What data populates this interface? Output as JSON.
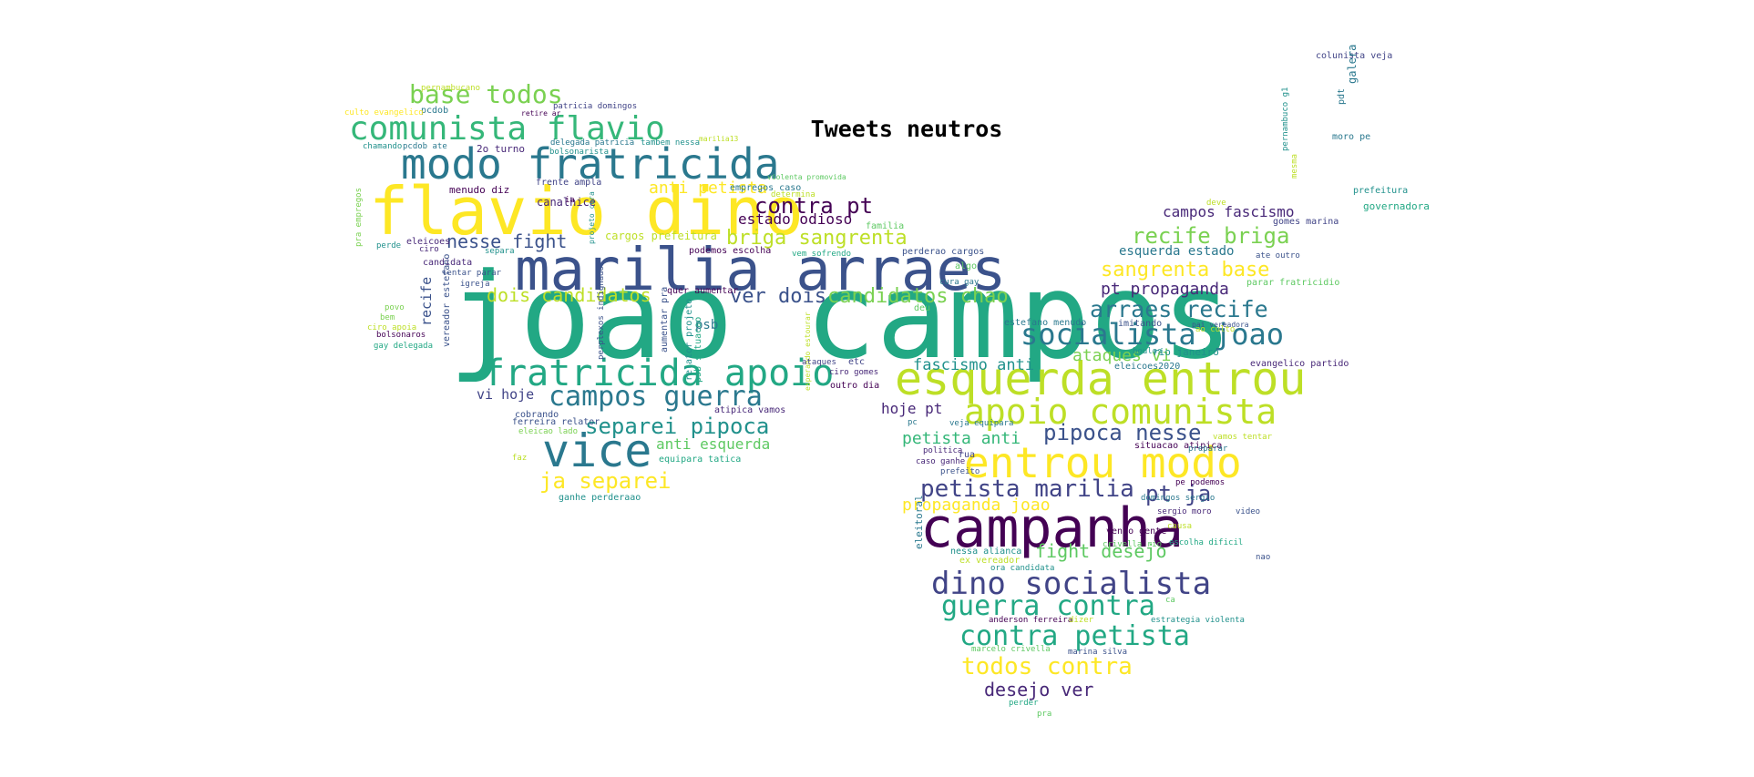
{
  "title": "Tweets neutros",
  "words": [
    {
      "text": "joao campos",
      "color": "#22a884"
    },
    {
      "text": "marilia arraes",
      "color": "#3b528b"
    },
    {
      "text": "flavio dino",
      "color": "#fde725"
    },
    {
      "text": "campanha",
      "color": "#440154"
    },
    {
      "text": "esquerda entrou",
      "color": "#bddf26"
    },
    {
      "text": "entrou modo",
      "color": "#fde725"
    },
    {
      "text": "modo fratricida",
      "color": "#2a788e"
    },
    {
      "text": "fratricida apoio",
      "color": "#22a884"
    },
    {
      "text": "vice",
      "color": "#2a788e"
    },
    {
      "text": "apoio comunista",
      "color": "#bddf26"
    },
    {
      "text": "comunista flavio",
      "color": "#35b779"
    },
    {
      "text": "dino socialista",
      "color": "#414487"
    },
    {
      "text": "guerra contra",
      "color": "#22a884"
    },
    {
      "text": "contra petista",
      "color": "#22a884"
    },
    {
      "text": "socialista joao",
      "color": "#2a788e"
    },
    {
      "text": "campos guerra",
      "color": "#2a788e"
    },
    {
      "text": "base todos",
      "color": "#7ad151"
    },
    {
      "text": "separei pipoca",
      "color": "#21918c"
    },
    {
      "text": "ja separei",
      "color": "#fde725"
    },
    {
      "text": "petista marilia",
      "color": "#414487"
    },
    {
      "text": "todos contra",
      "color": "#fde725"
    },
    {
      "text": "recife briga",
      "color": "#7ad151"
    },
    {
      "text": "briga sangrenta",
      "color": "#bddf26"
    },
    {
      "text": "arraes recife",
      "color": "#2a788e"
    },
    {
      "text": "sangrenta base",
      "color": "#fde725"
    },
    {
      "text": "desejo ver",
      "color": "#482878"
    },
    {
      "text": "contra pt",
      "color": "#440154"
    },
    {
      "text": "pipoca nesse",
      "color": "#3b528b"
    },
    {
      "text": "candidatos chao",
      "color": "#7ad151"
    },
    {
      "text": "pt ja",
      "color": "#414487"
    },
    {
      "text": "ver dois",
      "color": "#3b528b"
    },
    {
      "text": "dois candidatos",
      "color": "#bddf26"
    },
    {
      "text": "nesse fight",
      "color": "#3b528b"
    },
    {
      "text": "fight desejo",
      "color": "#5ec962"
    },
    {
      "text": "anti petista",
      "color": "#fde725"
    },
    {
      "text": "pt propaganda",
      "color": "#482878"
    },
    {
      "text": "propaganda joao",
      "color": "#fde725"
    },
    {
      "text": "campos fascismo",
      "color": "#482878"
    },
    {
      "text": "fascismo anti",
      "color": "#21918c"
    },
    {
      "text": "ataques vi",
      "color": "#7ad151"
    },
    {
      "text": "anti esquerda",
      "color": "#5ec962"
    },
    {
      "text": "estado odioso",
      "color": "#440154"
    },
    {
      "text": "esquerda estado",
      "color": "#2a788e"
    },
    {
      "text": "petista anti",
      "color": "#35b779"
    },
    {
      "text": "hoje pt",
      "color": "#482878"
    },
    {
      "text": "vi hoje",
      "color": "#414487"
    },
    {
      "text": "recife",
      "color": "#3b528b"
    },
    {
      "text": "psb",
      "color": "#2a788e"
    },
    {
      "text": "eleitoral",
      "color": "#2a788e"
    },
    {
      "text": "pernambucano",
      "color": "#bddf26"
    },
    {
      "text": "pcdob",
      "color": "#2a788e"
    },
    {
      "text": "culto evangelico",
      "color": "#fde725"
    },
    {
      "text": "patricia domingos",
      "color": "#414487"
    },
    {
      "text": "retire ar",
      "color": "#440154"
    },
    {
      "text": "chamando",
      "color": "#21918c"
    },
    {
      "text": "pcdob ate",
      "color": "#2a788e"
    },
    {
      "text": "2o turno",
      "color": "#482878"
    },
    {
      "text": "delegada patricia",
      "color": "#2a788e"
    },
    {
      "text": "tambem nessa",
      "color": "#21918c"
    },
    {
      "text": "marilia13",
      "color": "#bddf26"
    },
    {
      "text": "bolsonarista",
      "color": "#21918c"
    },
    {
      "text": "menudo diz",
      "color": "#440154"
    },
    {
      "text": "frente ampla",
      "color": "#414487"
    },
    {
      "text": "canalhice",
      "color": "#482878"
    },
    {
      "text": "ia",
      "color": "#440154"
    },
    {
      "text": "empregos caso",
      "color": "#2a788e"
    },
    {
      "text": "determina",
      "color": "#bddf26"
    },
    {
      "text": "violenta promovida",
      "color": "#5ec962"
    },
    {
      "text": "familia",
      "color": "#5ec962"
    },
    {
      "text": "cargos prefeitura",
      "color": "#bddf26"
    },
    {
      "text": "podemos escolha",
      "color": "#440154"
    },
    {
      "text": "vem sofrendo",
      "color": "#22a884"
    },
    {
      "text": "perderao cargos",
      "color": "#3b528b"
    },
    {
      "text": "algo",
      "color": "#5ec962"
    },
    {
      "text": "cura gay",
      "color": "#2a788e"
    },
    {
      "text": "quer aumentar",
      "color": "#440154"
    },
    {
      "text": "eleicoes",
      "color": "#482878"
    },
    {
      "text": "separa",
      "color": "#21918c"
    },
    {
      "text": "perde",
      "color": "#21918c"
    },
    {
      "text": "ciro",
      "color": "#482878"
    },
    {
      "text": "candidata",
      "color": "#482878"
    },
    {
      "text": "tentar parar",
      "color": "#3b528b"
    },
    {
      "text": "vereador estefano",
      "color": "#3b528b"
    },
    {
      "text": "igreja",
      "color": "#3b528b"
    },
    {
      "text": "povo",
      "color": "#7ad151"
    },
    {
      "text": "bem",
      "color": "#7ad151"
    },
    {
      "text": "ciro apoia",
      "color": "#bddf26"
    },
    {
      "text": "bolsonaros",
      "color": "#440154"
    },
    {
      "text": "gay delegada",
      "color": "#22a884"
    },
    {
      "text": "pra empregos",
      "color": "#7ad151"
    },
    {
      "text": "deu",
      "color": "#5ec962"
    },
    {
      "text": "aumentar pra",
      "color": "#3b528b"
    },
    {
      "text": "relator projeto",
      "color": "#21918c"
    },
    {
      "text": "psb situacao",
      "color": "#22a884"
    },
    {
      "text": "projeto cura",
      "color": "#21918c"
    },
    {
      "text": "perplexos indignados",
      "color": "#3b528b"
    },
    {
      "text": "esperando estourar",
      "color": "#bddf26"
    },
    {
      "text": "ciro gomes",
      "color": "#482878"
    },
    {
      "text": "outro dia",
      "color": "#440154"
    },
    {
      "text": "ataques",
      "color": "#414487"
    },
    {
      "text": "etc",
      "color": "#414487"
    },
    {
      "text": "atipica vamos",
      "color": "#482878"
    },
    {
      "text": "cobrando",
      "color": "#3b528b"
    },
    {
      "text": "ferreira relator",
      "color": "#3b528b"
    },
    {
      "text": "eleicao lado",
      "color": "#7ad151"
    },
    {
      "text": "equipara tatica",
      "color": "#22a884"
    },
    {
      "text": "faz",
      "color": "#bddf26"
    },
    {
      "text": "ganhe perderaao",
      "color": "#21918c"
    },
    {
      "text": "estefano menudo",
      "color": "#2a788e"
    },
    {
      "text": "imitando",
      "color": "#3b528b"
    },
    {
      "text": "boulos",
      "color": "#21918c"
    },
    {
      "text": "rio janeiro",
      "color": "#21918c"
    },
    {
      "text": "evangelico partido",
      "color": "#482878"
    },
    {
      "text": "eleicoes2020",
      "color": "#2a788e"
    },
    {
      "text": "pai vereadora",
      "color": "#3b528b"
    },
    {
      "text": "ao culto",
      "color": "#bddf26"
    },
    {
      "text": "parar fratricidio",
      "color": "#5ec962"
    },
    {
      "text": "ate outro",
      "color": "#3b528b"
    },
    {
      "text": "gomes marina",
      "color": "#414487"
    },
    {
      "text": "governadora",
      "color": "#22a884"
    },
    {
      "text": "prefeitura",
      "color": "#21918c"
    },
    {
      "text": "deve",
      "color": "#bddf26"
    },
    {
      "text": "moro pe",
      "color": "#2a788e"
    },
    {
      "text": "pc",
      "color": "#2a788e"
    },
    {
      "text": "veja equipara",
      "color": "#2a788e"
    },
    {
      "text": "politica",
      "color": "#482878"
    },
    {
      "text": "caso ganhe",
      "color": "#482878"
    },
    {
      "text": "prefeito",
      "color": "#3b528b"
    },
    {
      "text": "rua",
      "color": "#414487"
    },
    {
      "text": "situacao atipica",
      "color": "#440154"
    },
    {
      "text": "vamos tentar",
      "color": "#bddf26"
    },
    {
      "text": "preparar",
      "color": "#2a788e"
    },
    {
      "text": "pe podemos",
      "color": "#440154"
    },
    {
      "text": "domingos sergio",
      "color": "#2a788e"
    },
    {
      "text": "sergio moro",
      "color": "#482878"
    },
    {
      "text": "video",
      "color": "#3b528b"
    },
    {
      "text": "vendo gente",
      "color": "#440154"
    },
    {
      "text": "crivella rio",
      "color": "#5ec962"
    },
    {
      "text": "nao",
      "color": "#3b528b"
    },
    {
      "text": "escolha dificil",
      "color": "#22a884"
    },
    {
      "text": "nessa alianca",
      "color": "#21918c"
    },
    {
      "text": "ex vereador",
      "color": "#bddf26"
    },
    {
      "text": "ora candidata",
      "color": "#21918c"
    },
    {
      "text": "anderson ferreira",
      "color": "#440154"
    },
    {
      "text": "dizer",
      "color": "#bddf26"
    },
    {
      "text": "estrategia violenta",
      "color": "#21918c"
    },
    {
      "text": "marcelo crivella",
      "color": "#5ec962"
    },
    {
      "text": "marina silva",
      "color": "#3b528b"
    },
    {
      "text": "perder",
      "color": "#22a884"
    },
    {
      "text": "pra",
      "color": "#5ec962"
    },
    {
      "text": "colunista veja",
      "color": "#414487"
    },
    {
      "text": "pdt",
      "color": "#2a788e"
    },
    {
      "text": "galera",
      "color": "#2a788e"
    },
    {
      "text": "pernambuco g1",
      "color": "#21918c"
    },
    {
      "text": "mesma",
      "color": "#bddf26"
    },
    {
      "text": "causa",
      "color": "#bddf26"
    },
    {
      "text": "ca",
      "color": "#5ec962"
    }
  ]
}
